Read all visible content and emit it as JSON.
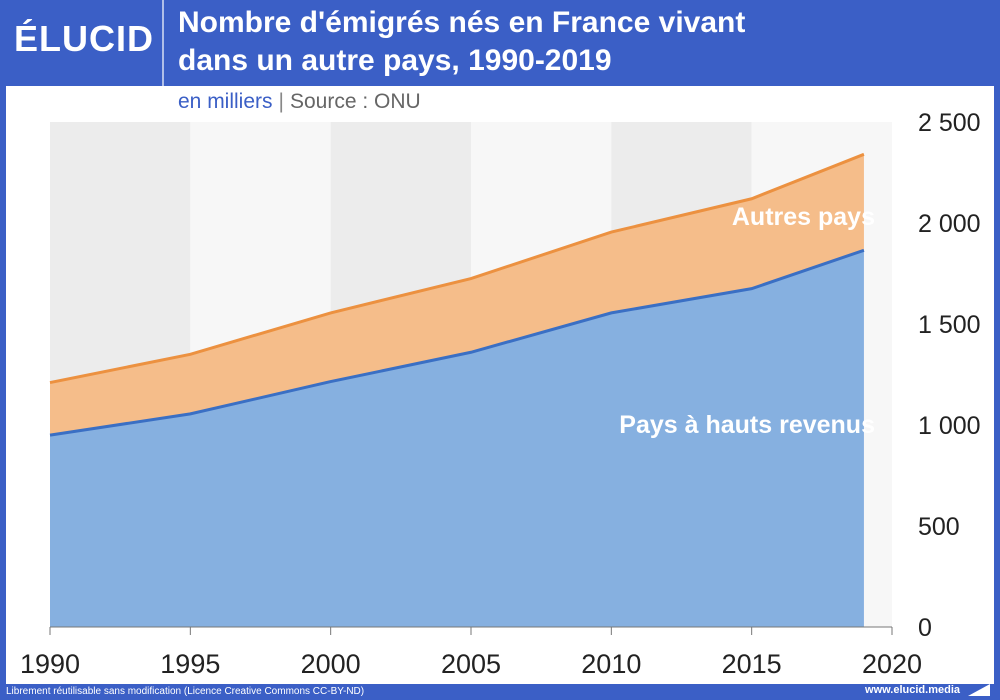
{
  "brand": {
    "logo": "ÉLUCID",
    "website": "www.elucid.media"
  },
  "title_line1": "Nombre d'émigrés nés en France vivant",
  "title_line2": "dans un autre pays, 1990-2019",
  "subtitle_unit": "en milliers",
  "subtitle_sep": "|",
  "subtitle_source": "Source : ONU",
  "footer_license": "Librement réutilisable sans modification (Licence Creative Commons CC-BY-ND)",
  "colors": {
    "high_income_fill": "#86b0e0",
    "high_income_line": "#3a6fc4",
    "other_fill": "#f5bd8a",
    "other_line": "#ec9140",
    "band_dark": "#ececec",
    "band_light": "#f7f7f7"
  },
  "chart_data": {
    "type": "area",
    "stacked": true,
    "x": [
      1990,
      1995,
      2000,
      2005,
      2010,
      2015,
      2019
    ],
    "series": [
      {
        "name": "Pays à hauts revenus",
        "values": [
          950,
          1055,
          1215,
          1360,
          1555,
          1675,
          1865
        ]
      },
      {
        "name": "Autres pays",
        "values": [
          260,
          295,
          340,
          365,
          400,
          445,
          475
        ]
      }
    ],
    "totals": [
      1210,
      1350,
      1555,
      1725,
      1955,
      2120,
      2340
    ],
    "xlim": [
      1990,
      2020
    ],
    "ylim": [
      0,
      2500
    ],
    "x_ticks": [
      "1990",
      "1995",
      "2000",
      "2005",
      "2010",
      "2015",
      "2020"
    ],
    "y_ticks": [
      "0",
      "500",
      "1 000",
      "1 500",
      "2 000",
      "2 500"
    ],
    "y_tick_values": [
      0,
      500,
      1000,
      1500,
      2000,
      2500
    ],
    "x_tick_values": [
      1990,
      1995,
      2000,
      2005,
      2010,
      2015,
      2020
    ],
    "y_axis_side": "right",
    "grid": "alternating vertical bands"
  }
}
